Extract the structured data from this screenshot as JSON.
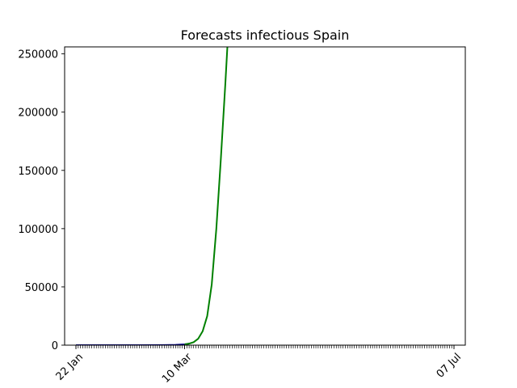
{
  "chart_data": {
    "type": "line",
    "title": "Forecasts infectious Spain",
    "xlabel": "",
    "ylabel": "",
    "x_start": "22 Jan",
    "x_end": "07 Jul",
    "xlim": [
      "17 Jan",
      "12 Jul"
    ],
    "ylim": [
      0,
      256000
    ],
    "x_tick_labels": [
      "22 Jan",
      "10 Mar",
      "07 Jul"
    ],
    "y_tick_labels": [
      "0",
      "50000",
      "100000",
      "150000",
      "200000",
      "250000"
    ],
    "y_tick_values": [
      0,
      50000,
      100000,
      150000,
      200000,
      250000
    ],
    "grid": false,
    "legend": "none",
    "series": [
      {
        "color": "#00008b",
        "x": [
          "22 Jan",
          "01 Feb",
          "10 Feb",
          "20 Feb",
          "01 Mar",
          "06 Mar",
          "10 Mar",
          "12 Mar"
        ],
        "y": [
          0,
          0,
          2,
          10,
          90,
          260,
          700,
          1300
        ]
      },
      {
        "color": "#008000",
        "x": [
          "10 Mar",
          "12 Mar",
          "14 Mar",
          "16 Mar",
          "18 Mar",
          "20 Mar",
          "22 Mar",
          "24 Mar",
          "26 Mar",
          "28 Mar",
          "29 Mar"
        ],
        "y": [
          700,
          1300,
          2600,
          5500,
          12000,
          25000,
          52000,
          100000,
          160000,
          225000,
          260000
        ]
      }
    ]
  }
}
